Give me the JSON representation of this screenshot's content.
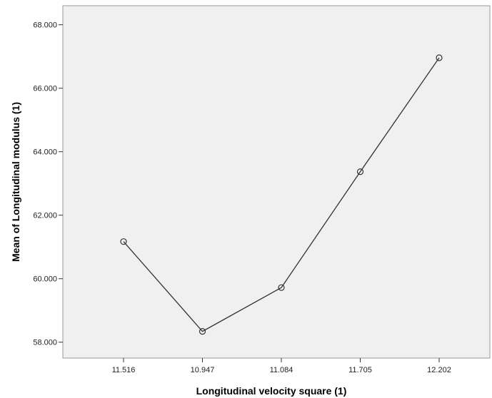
{
  "chart_data": {
    "type": "line",
    "categories": [
      "11.516",
      "10.947",
      "11.084",
      "11.705",
      "12.202"
    ],
    "values": [
      61.17,
      58.34,
      59.72,
      63.37,
      66.96
    ],
    "xlabel": "Longitudinal velocity square (1)",
    "ylabel": "Mean of Longitudinal modulus (1)",
    "ylim": [
      57.5,
      68.6
    ],
    "yticks": [
      "58.000",
      "60.000",
      "62.000",
      "64.000",
      "66.000",
      "68.000"
    ],
    "grid": false,
    "plot_background": "#f0f0f0",
    "line_color": "#333333",
    "marker": "open-circle"
  }
}
